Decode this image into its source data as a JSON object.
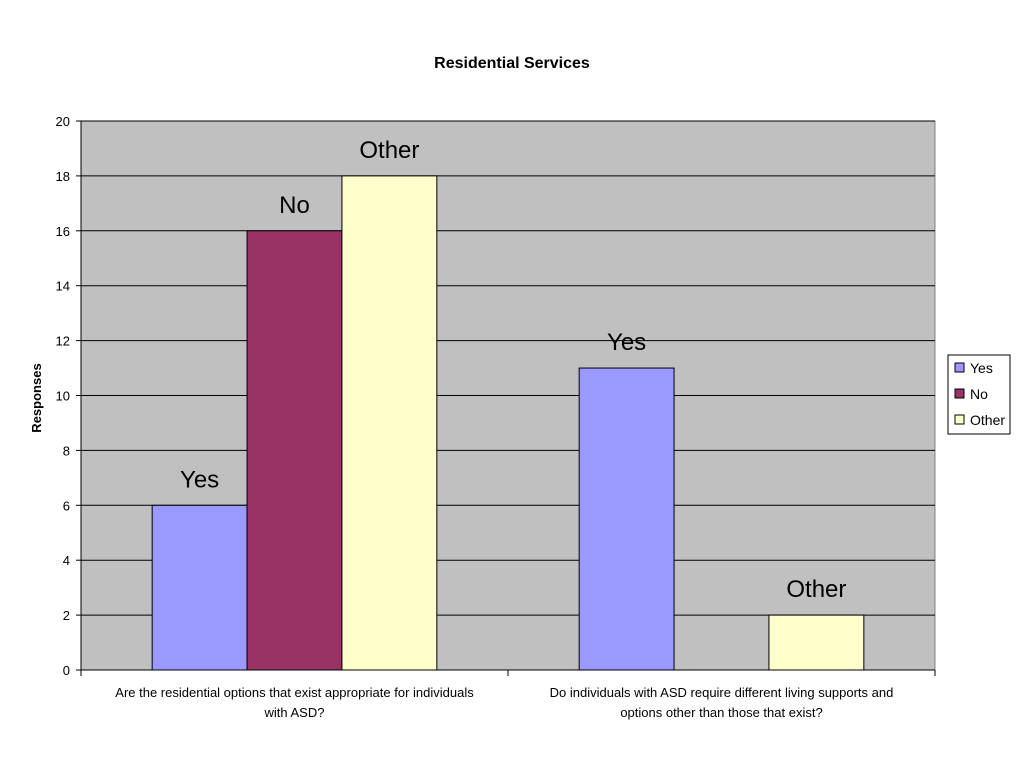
{
  "chart_data": {
    "type": "bar",
    "title": "Residential Services",
    "xlabel": "",
    "ylabel": "Responses",
    "ylim": [
      0,
      20
    ],
    "yticks": [
      0,
      2,
      4,
      6,
      8,
      10,
      12,
      14,
      16,
      18,
      20
    ],
    "grid": true,
    "legend_position": "right",
    "categories": [
      [
        "Are the residential options that exist appropriate for individuals",
        "with ASD?"
      ],
      [
        "Do individuals with ASD require different living supports and",
        "options other than those that exist?"
      ]
    ],
    "series": [
      {
        "name": "Yes",
        "color": "#9999FF",
        "values": [
          6,
          11
        ]
      },
      {
        "name": "No",
        "color": "#993366",
        "values": [
          16,
          0
        ]
      },
      {
        "name": "Other",
        "color": "#FFFFCC",
        "values": [
          18,
          2
        ]
      }
    ],
    "data_labels": true,
    "plot_background": "#C0C0C0"
  }
}
